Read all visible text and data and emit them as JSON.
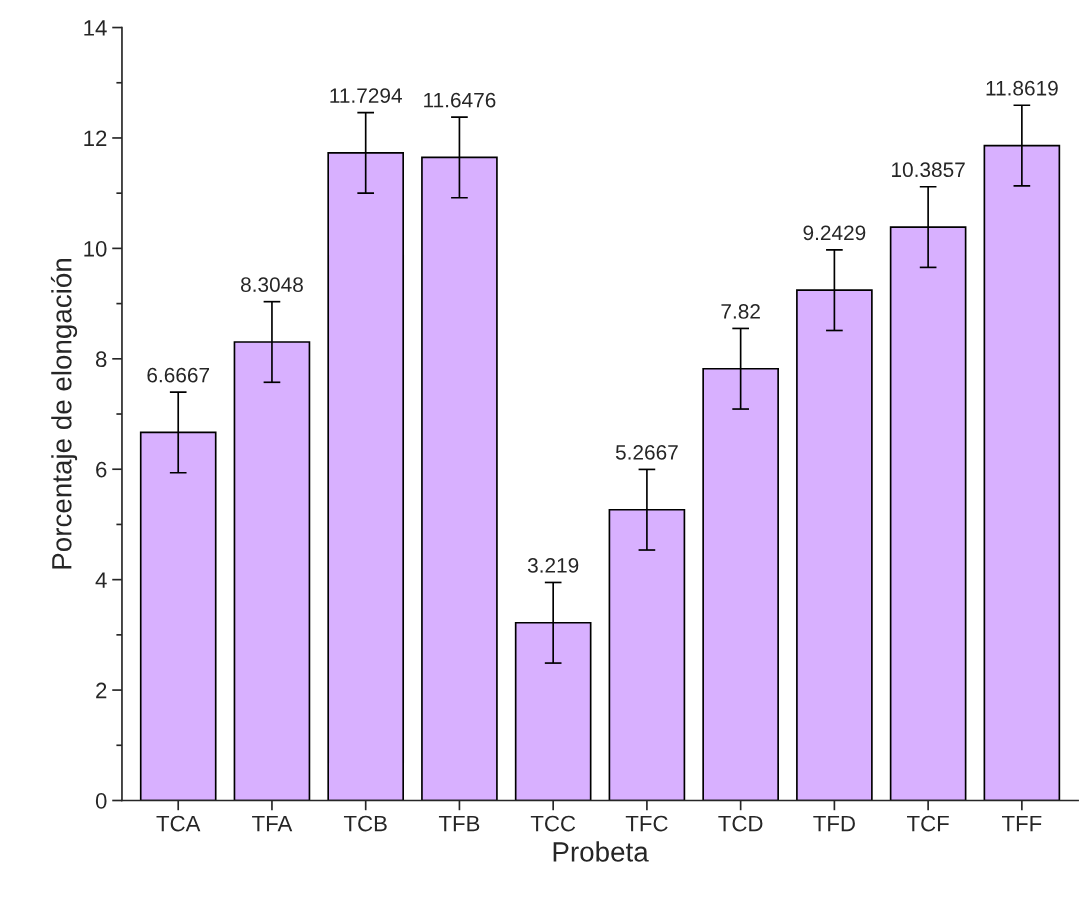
{
  "chart_data": {
    "type": "bar",
    "xlabel": "Probeta",
    "ylabel": "Porcentaje de elongación",
    "categories": [
      "TCA",
      "TFA",
      "TCB",
      "TFB",
      "TCC",
      "TFC",
      "TCD",
      "TFD",
      "TCF",
      "TFF"
    ],
    "values": [
      6.6667,
      8.3048,
      11.7294,
      11.6476,
      3.219,
      5.2667,
      7.82,
      9.2429,
      10.3857,
      11.8619
    ],
    "errors": [
      0.73,
      0.73,
      0.73,
      0.73,
      0.73,
      0.73,
      0.73,
      0.73,
      0.73,
      0.73
    ],
    "color": "#d8b0ff",
    "data_labels": true,
    "grid": false,
    "legend": false,
    "ylim": [
      0,
      14
    ],
    "yticks": [
      0,
      2,
      4,
      6,
      8,
      10,
      12,
      14
    ]
  }
}
